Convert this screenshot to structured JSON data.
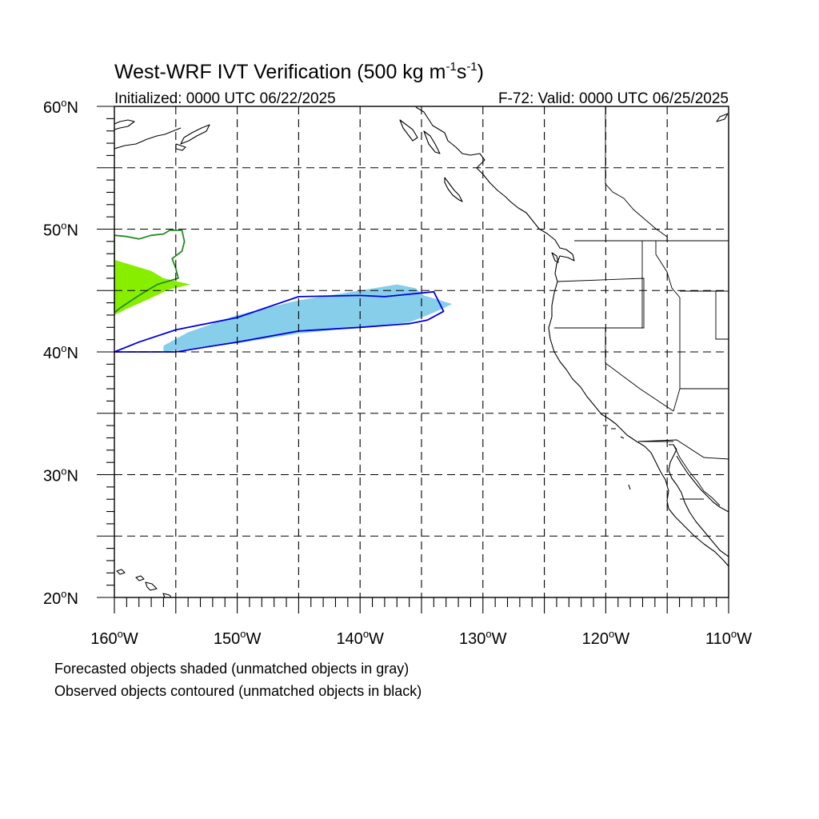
{
  "title": {
    "main": "West-WRF IVT Verification (500 kg m",
    "sup1": "-1",
    "mid": "s",
    "sup2": "-1",
    "close": ")"
  },
  "initialized": "Initialized: 0000 UTC 06/22/2025",
  "valid": "F-72: Valid: 0000 UTC 06/25/2025",
  "map": {
    "projection": "cylindrical equidistant",
    "lon_range": [
      -160,
      -110
    ],
    "lat_range": [
      20,
      60
    ],
    "grid_lon_step": 5,
    "grid_lat_step": 5,
    "grid_style": "dashed",
    "lat_labels": [
      {
        "lat": 60,
        "num": "60",
        "hem": "N"
      },
      {
        "lat": 50,
        "num": "50",
        "hem": "N"
      },
      {
        "lat": 40,
        "num": "40",
        "hem": "N"
      },
      {
        "lat": 30,
        "num": "30",
        "hem": "N"
      },
      {
        "lat": 20,
        "num": "20",
        "hem": "N"
      }
    ],
    "lon_labels": [
      {
        "lon": -160,
        "num": "160",
        "hem": "W"
      },
      {
        "lon": -150,
        "num": "150",
        "hem": "W"
      },
      {
        "lon": -140,
        "num": "140",
        "hem": "W"
      },
      {
        "lon": -130,
        "num": "130",
        "hem": "W"
      },
      {
        "lon": -120,
        "num": "120",
        "hem": "W"
      },
      {
        "lon": -110,
        "num": "110",
        "hem": "W"
      }
    ],
    "objects": [
      {
        "kind": "forecast",
        "matched": true,
        "fill": "#87ceeb",
        "outline": [
          [
            -156,
            40.0
          ],
          [
            -150,
            40.7
          ],
          [
            -145,
            41.5
          ],
          [
            -140,
            42.0
          ],
          [
            -136,
            42.4
          ],
          [
            -134,
            43.2
          ],
          [
            -132.5,
            43.9
          ],
          [
            -134.8,
            44.6
          ],
          [
            -135.5,
            45.2
          ],
          [
            -137,
            45.5
          ],
          [
            -140,
            45.0
          ],
          [
            -145,
            44.2
          ],
          [
            -150,
            43.0
          ],
          [
            -154,
            41.6
          ],
          [
            -156,
            40.5
          ]
        ]
      },
      {
        "kind": "observed",
        "matched": true,
        "stroke": "#0000dd",
        "outline": [
          [
            -160,
            40.0
          ],
          [
            -158,
            40.8
          ],
          [
            -155,
            41.8
          ],
          [
            -150,
            42.8
          ],
          [
            -145,
            44.5
          ],
          [
            -140,
            44.6
          ],
          [
            -138,
            44.5
          ],
          [
            -136,
            44.7
          ],
          [
            -134,
            44.9
          ],
          [
            -133.2,
            43.3
          ],
          [
            -134.5,
            42.6
          ],
          [
            -136,
            42.3
          ],
          [
            -140,
            42.0
          ],
          [
            -145,
            41.7
          ],
          [
            -150,
            40.8
          ],
          [
            -155,
            40.0
          ],
          [
            -158,
            40.0
          ]
        ]
      },
      {
        "kind": "forecast",
        "matched": true,
        "fill": "#88ee00",
        "outline": [
          [
            -160,
            47.5
          ],
          [
            -159,
            47.2
          ],
          [
            -157,
            46.6
          ],
          [
            -156,
            46.0
          ],
          [
            -153.8,
            45.5
          ],
          [
            -155.5,
            45.1
          ],
          [
            -157,
            44.4
          ],
          [
            -159,
            43.5
          ],
          [
            -160,
            43.0
          ]
        ]
      },
      {
        "kind": "observed",
        "matched": true,
        "stroke": "#228b22",
        "outline": [
          [
            -160,
            49.5
          ],
          [
            -159,
            49.4
          ],
          [
            -158,
            49.2
          ],
          [
            -157,
            49.5
          ],
          [
            -156,
            49.6
          ],
          [
            -155.5,
            49.9
          ],
          [
            -154.5,
            49.9
          ],
          [
            -154.3,
            49.0
          ],
          [
            -154.5,
            48.2
          ],
          [
            -155.3,
            47.6
          ],
          [
            -155.0,
            46.8
          ],
          [
            -154.8,
            46.0
          ],
          [
            -156.5,
            45.5
          ],
          [
            -158,
            44.6
          ],
          [
            -159.5,
            43.6
          ],
          [
            -160,
            43.2
          ]
        ]
      }
    ]
  },
  "footnotes": {
    "line1": "Forecasted objects shaded (unmatched objects in gray)",
    "line2": "Observed objects contoured (unmatched objects in black)"
  }
}
